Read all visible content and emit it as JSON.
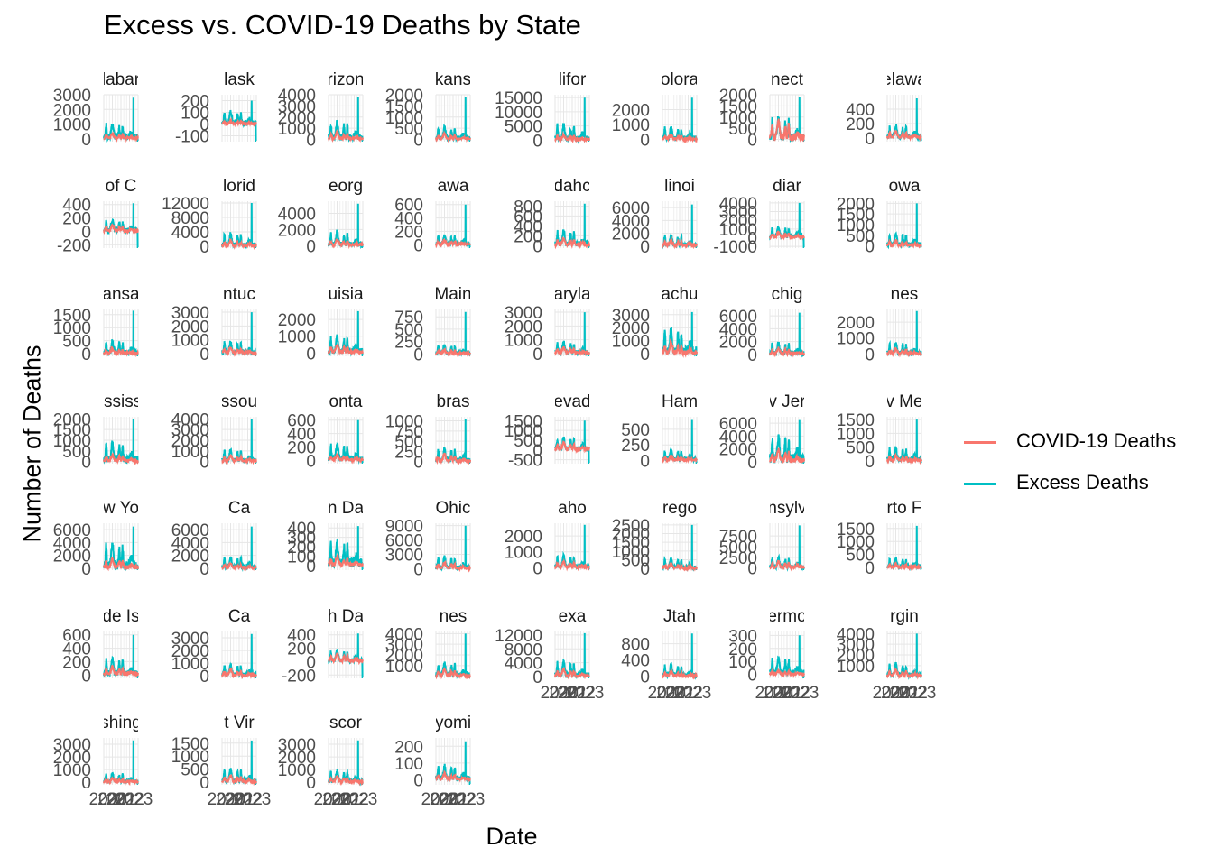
{
  "title": "Excess vs. COVID-19 Deaths by State",
  "xlabel": "Date",
  "ylabel": "Number of Deaths",
  "legend": {
    "items": [
      {
        "label": "COVID-19 Deaths",
        "color": "#F8766D"
      },
      {
        "label": "Excess Deaths",
        "color": "#00BFC4"
      }
    ]
  },
  "chart_data": {
    "type": "line",
    "title": "Excess vs. COVID-19 Deaths by State",
    "xlabel": "Date",
    "ylabel": "Number of Deaths",
    "x_range": [
      "2020-01",
      "2023-09"
    ],
    "x_tick_labels": [
      "2020",
      "2021",
      "2022",
      "2023"
    ],
    "grid": true,
    "legend_position": "right",
    "series_names": [
      "COVID-19 Deaths",
      "Excess Deaths"
    ],
    "series_colors": [
      "#F8766D",
      "#00BFC4"
    ],
    "facets": [
      {
        "strip": "Alabama",
        "strip_visible": "labar",
        "ylim": [
          -200,
          3000
        ],
        "yticks": [
          "0",
          "1000",
          "2000",
          "3000"
        ],
        "covid_peak": 600,
        "excess_peak": 2800,
        "excess_level": 1500
      },
      {
        "strip": "Alaska",
        "strip_visible": "lask",
        "ylim": [
          -150,
          250
        ],
        "yticks": [
          "-100",
          "0",
          "100",
          "200"
        ],
        "covid_peak": 40,
        "excess_peak": 200,
        "excess_level": 150
      },
      {
        "strip": "Arizona",
        "strip_visible": "rizon",
        "ylim": [
          -200,
          4000
        ],
        "yticks": [
          "0",
          "1000",
          "2000",
          "3000",
          "4000"
        ],
        "covid_peak": 1000,
        "excess_peak": 3800,
        "excess_level": 2200
      },
      {
        "strip": "Arkansas",
        "strip_visible": "kans",
        "ylim": [
          -100,
          2000
        ],
        "yticks": [
          "0",
          "500",
          "1000",
          "1500",
          "2000"
        ],
        "covid_peak": 400,
        "excess_peak": 1900,
        "excess_level": 800
      },
      {
        "strip": "California",
        "strip_visible": "lifor",
        "ylim": [
          -500,
          16000
        ],
        "yticks": [
          "0",
          "5000",
          "10000",
          "15000"
        ],
        "covid_peak": 3000,
        "excess_peak": 15000,
        "excess_level": 8000
      },
      {
        "strip": "Colorado",
        "strip_visible": "olora",
        "ylim": [
          -150,
          3000
        ],
        "yticks": [
          "0",
          "1000",
          "2000"
        ],
        "covid_peak": 500,
        "excess_peak": 2800,
        "excess_level": 1200
      },
      {
        "strip": "Connecticut",
        "strip_visible": "nect",
        "ylim": [
          -100,
          2000
        ],
        "yticks": [
          "0",
          "500",
          "1000",
          "1500",
          "2000"
        ],
        "covid_peak": 1300,
        "excess_peak": 1900,
        "excess_level": 1400
      },
      {
        "strip": "Delaware",
        "strip_visible": "elawa",
        "ylim": [
          -50,
          600
        ],
        "yticks": [
          "0",
          "200",
          "400"
        ],
        "covid_peak": 150,
        "excess_peak": 550,
        "excess_level": 250
      },
      {
        "strip": "District of Columbia",
        "strip_visible": "of C",
        "ylim": [
          -250,
          450
        ],
        "yticks": [
          "-200",
          "0",
          "200",
          "400"
        ],
        "covid_peak": 150,
        "excess_peak": 420,
        "excess_level": 250
      },
      {
        "strip": "Florida",
        "strip_visible": "lorid",
        "ylim": [
          -500,
          12500
        ],
        "yticks": [
          "0",
          "4000",
          "8000",
          "12000"
        ],
        "covid_peak": 2500,
        "excess_peak": 12000,
        "excess_level": 5000
      },
      {
        "strip": "Georgia",
        "strip_visible": "eorg",
        "ylim": [
          -300,
          5500
        ],
        "yticks": [
          "0",
          "2000",
          "4000"
        ],
        "covid_peak": 1200,
        "excess_peak": 5200,
        "excess_level": 2500
      },
      {
        "strip": "Hawaii",
        "strip_visible": "awa",
        "ylim": [
          -50,
          650
        ],
        "yticks": [
          "0",
          "200",
          "400",
          "600"
        ],
        "covid_peak": 100,
        "excess_peak": 600,
        "excess_level": 200
      },
      {
        "strip": "Idaho",
        "strip_visible": "dahc",
        "ylim": [
          -50,
          900
        ],
        "yticks": [
          "0",
          "200",
          "400",
          "600",
          "800"
        ],
        "covid_peak": 250,
        "excess_peak": 850,
        "excess_level": 450
      },
      {
        "strip": "Illinois",
        "strip_visible": "linoi",
        "ylim": [
          -300,
          7000
        ],
        "yticks": [
          "0",
          "2000",
          "4000",
          "6000"
        ],
        "covid_peak": 1500,
        "excess_peak": 6500,
        "excess_level": 2500
      },
      {
        "strip": "Indiana",
        "strip_visible": "diar",
        "ylim": [
          -1200,
          4200
        ],
        "yticks": [
          "-1000",
          "0",
          "1000",
          "2000",
          "3000",
          "4000"
        ],
        "covid_peak": 1000,
        "excess_peak": 4000,
        "excess_level": 1800
      },
      {
        "strip": "Iowa",
        "strip_visible": "owa",
        "ylim": [
          -100,
          2100
        ],
        "yticks": [
          "0",
          "500",
          "1000",
          "1500",
          "2000"
        ],
        "covid_peak": 400,
        "excess_peak": 2000,
        "excess_level": 900
      },
      {
        "strip": "Kansas",
        "strip_visible": "ansa",
        "ylim": [
          -100,
          1700
        ],
        "yticks": [
          "0",
          "500",
          "1000",
          "1500"
        ],
        "covid_peak": 300,
        "excess_peak": 1650,
        "excess_level": 700
      },
      {
        "strip": "Kentucky",
        "strip_visible": "ntuc",
        "ylim": [
          -200,
          3200
        ],
        "yticks": [
          "0",
          "1000",
          "2000",
          "3000"
        ],
        "covid_peak": 700,
        "excess_peak": 3000,
        "excess_level": 1200
      },
      {
        "strip": "Louisiana",
        "strip_visible": "uisia",
        "ylim": [
          -200,
          2600
        ],
        "yticks": [
          "0",
          "1000",
          "2000"
        ],
        "covid_peak": 800,
        "excess_peak": 2500,
        "excess_level": 1400
      },
      {
        "strip": "Maine",
        "strip_visible": "Main",
        "ylim": [
          -50,
          900
        ],
        "yticks": [
          "0",
          "250",
          "500",
          "750"
        ],
        "covid_peak": 120,
        "excess_peak": 850,
        "excess_level": 250
      },
      {
        "strip": "Maryland",
        "strip_visible": "aryla",
        "ylim": [
          -200,
          3200
        ],
        "yticks": [
          "0",
          "1000",
          "2000",
          "3000"
        ],
        "covid_peak": 700,
        "excess_peak": 3000,
        "excess_level": 1200
      },
      {
        "strip": "Massachusetts",
        "strip_visible": "achu",
        "ylim": [
          -200,
          3400
        ],
        "yticks": [
          "0",
          "1000",
          "2000",
          "3000"
        ],
        "covid_peak": 1400,
        "excess_peak": 3200,
        "excess_level": 2700
      },
      {
        "strip": "Michigan",
        "strip_visible": "chig",
        "ylim": [
          -300,
          7000
        ],
        "yticks": [
          "0",
          "2000",
          "4000",
          "6000"
        ],
        "covid_peak": 1500,
        "excess_peak": 6500,
        "excess_level": 2600
      },
      {
        "strip": "Minnesota",
        "strip_visible": "nes",
        "ylim": [
          -150,
          2800
        ],
        "yticks": [
          "0",
          "1000",
          "2000"
        ],
        "covid_peak": 500,
        "excess_peak": 2700,
        "excess_level": 1000
      },
      {
        "strip": "Mississippi",
        "strip_visible": "ississ",
        "ylim": [
          -100,
          2100
        ],
        "yticks": [
          "0",
          "500",
          "1000",
          "1500",
          "2000"
        ],
        "covid_peak": 500,
        "excess_peak": 2000,
        "excess_level": 1300
      },
      {
        "strip": "Missouri",
        "strip_visible": "ssou",
        "ylim": [
          -200,
          4200
        ],
        "yticks": [
          "0",
          "1000",
          "2000",
          "3000",
          "4000"
        ],
        "covid_peak": 900,
        "excess_peak": 4000,
        "excess_level": 1600
      },
      {
        "strip": "Montana",
        "strip_visible": "onta",
        "ylim": [
          -50,
          650
        ],
        "yticks": [
          "0",
          "200",
          "400",
          "600"
        ],
        "covid_peak": 120,
        "excess_peak": 600,
        "excess_level": 350
      },
      {
        "strip": "Nebraska",
        "strip_visible": "bras",
        "ylim": [
          -50,
          1100
        ],
        "yticks": [
          "0",
          "250",
          "500",
          "750",
          "1000"
        ],
        "covid_peak": 300,
        "excess_peak": 1050,
        "excess_level": 450
      },
      {
        "strip": "Nevada",
        "strip_visible": "evad",
        "ylim": [
          -700,
          1700
        ],
        "yticks": [
          "-500",
          "0",
          "500",
          "1000",
          "1500"
        ],
        "covid_peak": 600,
        "excess_peak": 1500,
        "excess_level": 900
      },
      {
        "strip": "New Hampshire",
        "strip_visible": "Ham",
        "ylim": [
          -50,
          700
        ],
        "yticks": [
          "0",
          "250",
          "500"
        ],
        "covid_peak": 120,
        "excess_peak": 650,
        "excess_level": 250
      },
      {
        "strip": "New Jersey",
        "strip_visible": "v Jer",
        "ylim": [
          -300,
          7000
        ],
        "yticks": [
          "0",
          "2000",
          "4000",
          "6000"
        ],
        "covid_peak": 3000,
        "excess_peak": 6500,
        "excess_level": 6000
      },
      {
        "strip": "New Mexico",
        "strip_visible": "v Me",
        "ylim": [
          -100,
          1600
        ],
        "yticks": [
          "0",
          "500",
          "1000",
          "1500"
        ],
        "covid_peak": 300,
        "excess_peak": 1500,
        "excess_level": 700
      },
      {
        "strip": "New York",
        "strip_visible": "w Yo",
        "ylim": [
          -300,
          7000
        ],
        "yticks": [
          "0",
          "2000",
          "4000",
          "6000"
        ],
        "covid_peak": 2500,
        "excess_peak": 6500,
        "excess_level": 5500
      },
      {
        "strip": "North Carolina",
        "strip_visible": "Ca",
        "ylim": [
          -300,
          7000
        ],
        "yticks": [
          "0",
          "2000",
          "4000",
          "6000"
        ],
        "covid_peak": 1200,
        "excess_peak": 6500,
        "excess_level": 2500
      },
      {
        "strip": "North Dakota",
        "strip_visible": "n Da",
        "ylim": [
          -50,
          450
        ],
        "yticks": [
          "0",
          "100",
          "200",
          "300",
          "400"
        ],
        "covid_peak": 150,
        "excess_peak": 420,
        "excess_level": 380
      },
      {
        "strip": "Ohio",
        "strip_visible": "Ohic",
        "ylim": [
          -300,
          9500
        ],
        "yticks": [
          "0",
          "3000",
          "6000",
          "9000"
        ],
        "covid_peak": 2000,
        "excess_peak": 9000,
        "excess_level": 3500
      },
      {
        "strip": "Oklahoma",
        "strip_visible": "aho",
        "ylim": [
          -150,
          2800
        ],
        "yticks": [
          "0",
          "1000",
          "2000"
        ],
        "covid_peak": 600,
        "excess_peak": 2700,
        "excess_level": 1100
      },
      {
        "strip": "Oregon",
        "strip_visible": "rego",
        "ylim": [
          -100,
          2600
        ],
        "yticks": [
          "0",
          "500",
          "1000",
          "1500",
          "2000",
          "2500"
        ],
        "covid_peak": 400,
        "excess_peak": 2500,
        "excess_level": 800
      },
      {
        "strip": "Pennsylvania",
        "strip_visible": "nsylv",
        "ylim": [
          -500,
          10500
        ],
        "yticks": [
          "0",
          "2500",
          "5000",
          "7500"
        ],
        "covid_peak": 2500,
        "excess_peak": 10000,
        "excess_level": 3500
      },
      {
        "strip": "Puerto Rico",
        "strip_visible": "rto F",
        "ylim": [
          -100,
          1700
        ],
        "yticks": [
          "0",
          "500",
          "1000",
          "1500"
        ],
        "covid_peak": 200,
        "excess_peak": 1600,
        "excess_level": 500
      },
      {
        "strip": "Rhode Island",
        "strip_visible": "de Is",
        "ylim": [
          -50,
          650
        ],
        "yticks": [
          "0",
          "200",
          "400",
          "600"
        ],
        "covid_peak": 200,
        "excess_peak": 600,
        "excess_level": 350
      },
      {
        "strip": "South Carolina",
        "strip_visible": "Ca",
        "ylim": [
          -200,
          3500
        ],
        "yticks": [
          "0",
          "1000",
          "2000",
          "3000"
        ],
        "covid_peak": 800,
        "excess_peak": 3300,
        "excess_level": 1300
      },
      {
        "strip": "South Dakota",
        "strip_visible": "h Da",
        "ylim": [
          -250,
          450
        ],
        "yticks": [
          "-200",
          "0",
          "200",
          "400"
        ],
        "covid_peak": 200,
        "excess_peak": 420,
        "excess_level": 250
      },
      {
        "strip": "Tennessee",
        "strip_visible": "nes",
        "ylim": [
          -200,
          4200
        ],
        "yticks": [
          "1000",
          "2000",
          "3000",
          "4000"
        ],
        "covid_peak": 1000,
        "excess_peak": 4000,
        "excess_level": 1800
      },
      {
        "strip": "Texas",
        "strip_visible": "exa",
        "ylim": [
          -500,
          13000
        ],
        "yticks": [
          "0",
          "4000",
          "8000",
          "12000"
        ],
        "covid_peak": 3500,
        "excess_peak": 12500,
        "excess_level": 6000
      },
      {
        "strip": "Utah",
        "strip_visible": "Jtah",
        "ylim": [
          -50,
          1100
        ],
        "yticks": [
          "0",
          "400",
          "800"
        ],
        "covid_peak": 200,
        "excess_peak": 1050,
        "excess_level": 400
      },
      {
        "strip": "Vermont",
        "strip_visible": "ermo",
        "ylim": [
          -30,
          330
        ],
        "yticks": [
          "0",
          "100",
          "200",
          "300"
        ],
        "covid_peak": 50,
        "excess_peak": 300,
        "excess_level": 180
      },
      {
        "strip": "Virginia",
        "strip_visible": "rgin",
        "ylim": [
          -200,
          4200
        ],
        "yticks": [
          "1000",
          "2000",
          "3000",
          "4000"
        ],
        "covid_peak": 1000,
        "excess_peak": 4000,
        "excess_level": 1700
      },
      {
        "strip": "Washington",
        "strip_visible": "shing",
        "ylim": [
          -200,
          3500
        ],
        "yticks": [
          "0",
          "1000",
          "2000",
          "3000"
        ],
        "covid_peak": 500,
        "excess_peak": 3300,
        "excess_level": 1000
      },
      {
        "strip": "West Virginia",
        "strip_visible": "t Vir",
        "ylim": [
          -100,
          1700
        ],
        "yticks": [
          "0",
          "500",
          "1000",
          "1500"
        ],
        "covid_peak": 400,
        "excess_peak": 1600,
        "excess_level": 700
      },
      {
        "strip": "Wisconsin",
        "strip_visible": "scor",
        "ylim": [
          -200,
          3500
        ],
        "yticks": [
          "0",
          "1000",
          "2000",
          "3000"
        ],
        "covid_peak": 700,
        "excess_peak": 3300,
        "excess_level": 1300
      },
      {
        "strip": "Wyoming",
        "strip_visible": "yomi",
        "ylim": [
          -30,
          250
        ],
        "yticks": [
          "0",
          "100",
          "200"
        ],
        "covid_peak": 60,
        "excess_peak": 230,
        "excess_level": 120
      }
    ]
  }
}
